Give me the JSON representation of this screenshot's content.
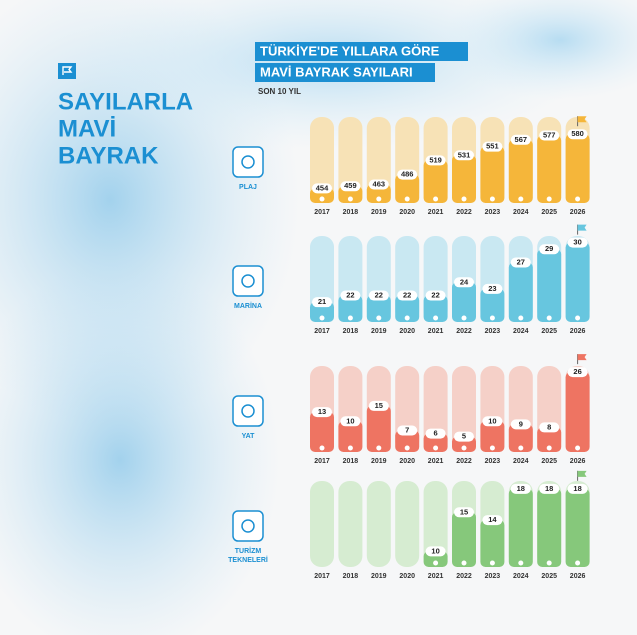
{
  "header": {
    "side_title": [
      "SAYILARLA",
      "MAVİ",
      "BAYRAK"
    ],
    "title": [
      "TÜRKİYE'DE YILLARA GÖRE",
      "MAVİ BAYRAK SAYILARI"
    ],
    "subtitle": "SON 10 YIL"
  },
  "chart_data": [
    {
      "type": "bar",
      "title": "PLAJ",
      "categories": [
        "2017",
        "2018",
        "2019",
        "2020",
        "2021",
        "2022",
        "2023",
        "2024",
        "2025",
        "2026"
      ],
      "values": [
        454,
        459,
        463,
        486,
        519,
        531,
        551,
        567,
        577,
        580
      ],
      "color": "#f5b63a",
      "track_color": "#f7e2b6",
      "ylim": [
        420,
        620
      ]
    },
    {
      "type": "bar",
      "title": "MARİNA",
      "categories": [
        "2017",
        "2018",
        "2019",
        "2020",
        "2021",
        "2022",
        "2023",
        "2024",
        "2025",
        "2026"
      ],
      "values": [
        21,
        22,
        22,
        22,
        22,
        24,
        23,
        27,
        29,
        30
      ],
      "color": "#67c6df",
      "track_color": "#c9e8f2",
      "ylim": [
        18,
        31
      ]
    },
    {
      "type": "bar",
      "title": "YAT",
      "categories": [
        "2017",
        "2018",
        "2019",
        "2020",
        "2021",
        "2022",
        "2023",
        "2024",
        "2025",
        "2026"
      ],
      "values": [
        13,
        10,
        15,
        7,
        6,
        5,
        10,
        9,
        8,
        26
      ],
      "color": "#ee7462",
      "track_color": "#f5d0c8",
      "ylim": [
        0,
        28
      ]
    },
    {
      "type": "bar",
      "title": "TURİZM TEKNELERİ",
      "categories": [
        "2017",
        "2018",
        "2019",
        "2020",
        "2021",
        "2022",
        "2023",
        "2024",
        "2025",
        "2026"
      ],
      "values": [
        null,
        null,
        null,
        null,
        10,
        15,
        14,
        18,
        18,
        18
      ],
      "color": "#86c87b",
      "track_color": "#d6ecd1",
      "ylim": [
        8,
        19
      ]
    }
  ]
}
